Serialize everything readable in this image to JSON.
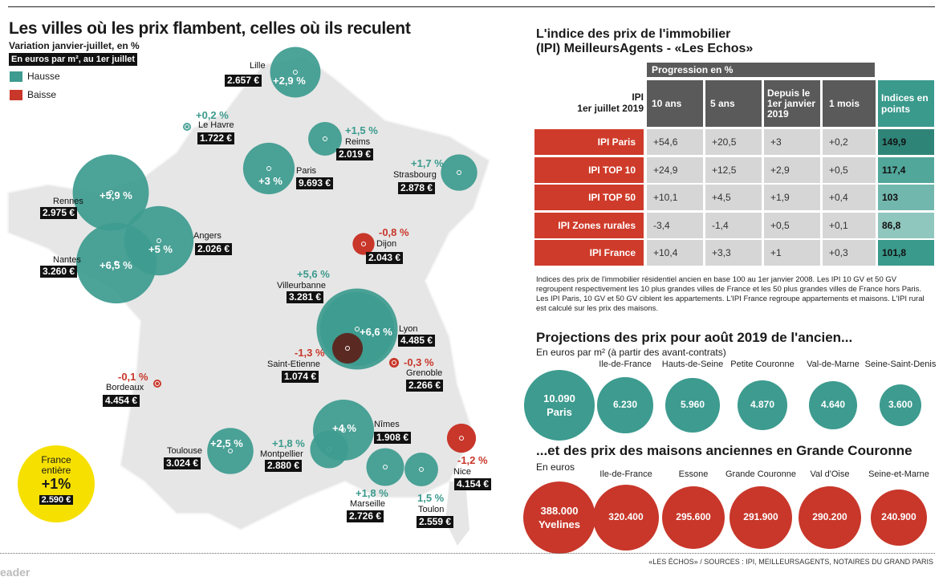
{
  "colors": {
    "hausse": "#3d9b8f",
    "baisse": "#c8372a",
    "yellow": "#f6e000",
    "teal_dark": "#2f8478"
  },
  "map": {
    "title": "Les villes où les prix flambent, celles où ils reculent",
    "subtitle": "Variation janvier-juillet, en %",
    "unit_label": "En euros par m², au 1er juillet",
    "legend": [
      {
        "label": "Hausse",
        "color": "#3d9b8f"
      },
      {
        "label": "Baisse",
        "color": "#c8372a"
      }
    ],
    "cities": [
      {
        "name": "Lille",
        "price": "2.657 €",
        "change": "+2,9 %",
        "value": 2.9
      },
      {
        "name": "Le Havre",
        "price": "1.722 €",
        "change": "+0,2 %",
        "value": 0.2
      },
      {
        "name": "Reims",
        "price": "2.019 €",
        "change": "+1,5 %",
        "value": 1.5
      },
      {
        "name": "Paris",
        "price": "9.693 €",
        "change": "+3 %",
        "value": 3.0
      },
      {
        "name": "Strasbourg",
        "price": "2.878 €",
        "change": "+1,7 %",
        "value": 1.7
      },
      {
        "name": "Rennes",
        "price": "2.975 €",
        "change": "+5,9 %",
        "value": 5.9
      },
      {
        "name": "Angers",
        "price": "2.026 €",
        "change": "+5 %",
        "value": 5.0
      },
      {
        "name": "Nantes",
        "price": "3.260 €",
        "change": "+6,5 %",
        "value": 6.5
      },
      {
        "name": "Dijon",
        "price": "2.043 €",
        "change": "-0,8 %",
        "value": -0.8
      },
      {
        "name": "Villeurbanne",
        "price": "3.281 €",
        "change": "+5,6 %",
        "value": 5.6
      },
      {
        "name": "Lyon",
        "price": "4.485 €",
        "change": "+6,6 %",
        "value": 6.6
      },
      {
        "name": "Saint-Etienne",
        "price": "1.074 €",
        "change": "-1,3 %",
        "value": -1.3
      },
      {
        "name": "Grenoble",
        "price": "2.266 €",
        "change": "-0,3 %",
        "value": -0.3
      },
      {
        "name": "Bordeaux",
        "price": "4.454 €",
        "change": "-0,1 %",
        "value": -0.1
      },
      {
        "name": "Toulouse",
        "price": "3.024 €",
        "change": "+2,5 %",
        "value": 2.5
      },
      {
        "name": "Montpellier",
        "price": "2.880 €",
        "change": "+1,8 %",
        "value": 1.8
      },
      {
        "name": "Nîmes",
        "price": "1.908 €",
        "change": "+4 %",
        "value": 4.0
      },
      {
        "name": "Marseille",
        "price": "2.726 €",
        "change": "+1,8 %",
        "value": 1.8
      },
      {
        "name": "Toulon",
        "price": "2.559 €",
        "change": "1,5 %",
        "value": 1.5
      },
      {
        "name": "Nice",
        "price": "4.154 €",
        "change": "-1,2 %",
        "value": -1.2
      }
    ],
    "france": {
      "line1": "France",
      "line2": "entière",
      "change": "+1%",
      "price": "2.590 €"
    }
  },
  "ipi": {
    "title_line1": "L'indice des prix de l'immobilier",
    "title_line2": "(IPI) MeilleursAgents - «Les Echos»",
    "progression_header": "Progression en %",
    "row_header_line1": "IPI",
    "row_header_line2": "1er juillet 2019",
    "columns": [
      "10 ans",
      "5 ans",
      "Depuis le 1er janvier 2019",
      "1 mois",
      "Indices en points"
    ],
    "rows": [
      {
        "label": "IPI Paris",
        "values": [
          "+54,6",
          "+20,5",
          "+3",
          "+0,2",
          "149,9"
        ]
      },
      {
        "label": "IPI TOP 10",
        "values": [
          "+24,9",
          "+12,5",
          "+2,9",
          "+0,5",
          "117,4"
        ]
      },
      {
        "label": "IPI TOP 50",
        "values": [
          "+10,1",
          "+4,5",
          "+1,9",
          "+0,4",
          "103"
        ]
      },
      {
        "label": "IPI Zones rurales",
        "values": [
          "-3,4",
          "-1,4",
          "+0,5",
          "+0,1",
          "86,8"
        ]
      },
      {
        "label": "IPI France",
        "values": [
          "+10,4",
          "+3,3",
          "+1",
          "+0,3",
          "101,8"
        ]
      }
    ],
    "note": "Indices des prix de l'immobilier résidentiel ancien en base 100 au 1er janvier 2008. Les IPI 10 GV et 50 GV regroupent respectivement les 10 plus grandes villes de France et les 50 plus grandes villes de France hors Paris. Les IPI Paris, 10 GV et 50 GV ciblent les appartements. L'IPI France regroupe appartements et maisons. L'IPI rural est calculé sur les prix des maisons."
  },
  "projections": {
    "title": "Projections des prix pour août 2019 de l'ancien...",
    "subtitle": "En euros par m² (à partir des avant-contrats)",
    "items": [
      {
        "label": "",
        "value": "10.090",
        "inner_label": "Paris"
      },
      {
        "label": "Ile-de-France",
        "value": "6.230"
      },
      {
        "label": "Hauts-de-Seine",
        "value": "5.960"
      },
      {
        "label": "Petite Couronne",
        "value": "4.870"
      },
      {
        "label": "Val-de-Marne",
        "value": "4.640"
      },
      {
        "label": "Seine-Saint-Denis",
        "value": "3.600"
      }
    ]
  },
  "maisons": {
    "title": "...et des prix des maisons anciennes en Grande Couronne",
    "subtitle": "En euros",
    "items": [
      {
        "label": "",
        "value": "388.000",
        "inner_label": "Yvelines"
      },
      {
        "label": "Ile-de-France",
        "value": "320.400"
      },
      {
        "label": "Essone",
        "value": "295.600"
      },
      {
        "label": "Grande Couronne",
        "value": "291.900"
      },
      {
        "label": "Val d'Oise",
        "value": "290.200"
      },
      {
        "label": "Seine-et-Marne",
        "value": "240.900"
      }
    ]
  },
  "source": "«LES ÉCHOS» / SOURCES : IPI, MEILLEURSAGENTS, NOTAIRES DU GRAND PARIS",
  "watermark": "eader",
  "chart_data": [
    {
      "type": "table",
      "title": "L'indice des prix de l'immobilier (IPI) MeilleursAgents - «Les Echos»",
      "columns": [
        "10 ans",
        "5 ans",
        "Depuis le 1er janvier 2019",
        "1 mois",
        "Indices en points"
      ],
      "rows": [
        {
          "name": "IPI Paris",
          "values": [
            54.6,
            20.5,
            3,
            0.2,
            149.9
          ]
        },
        {
          "name": "IPI TOP 10",
          "values": [
            24.9,
            12.5,
            2.9,
            0.5,
            117.4
          ]
        },
        {
          "name": "IPI TOP 50",
          "values": [
            10.1,
            4.5,
            1.9,
            0.4,
            103
          ]
        },
        {
          "name": "IPI Zones rurales",
          "values": [
            -3.4,
            -1.4,
            0.5,
            0.1,
            86.8
          ]
        },
        {
          "name": "IPI France",
          "values": [
            10.4,
            3.3,
            1,
            0.3,
            101.8
          ]
        }
      ]
    },
    {
      "type": "scatter",
      "title": "Projections des prix pour août 2019 de l'ancien...",
      "categories": [
        "Paris",
        "Ile-de-France",
        "Hauts-de-Seine",
        "Petite Couronne",
        "Val-de-Marne",
        "Seine-Saint-Denis"
      ],
      "values": [
        10090,
        6230,
        5960,
        4870,
        4640,
        3600
      ]
    },
    {
      "type": "scatter",
      "title": "...et des prix des maisons anciennes en Grande Couronne",
      "categories": [
        "Yvelines",
        "Ile-de-France",
        "Essone",
        "Grande Couronne",
        "Val d'Oise",
        "Seine-et-Marne"
      ],
      "values": [
        388000,
        320400,
        295600,
        291900,
        290200,
        240900
      ]
    }
  ]
}
